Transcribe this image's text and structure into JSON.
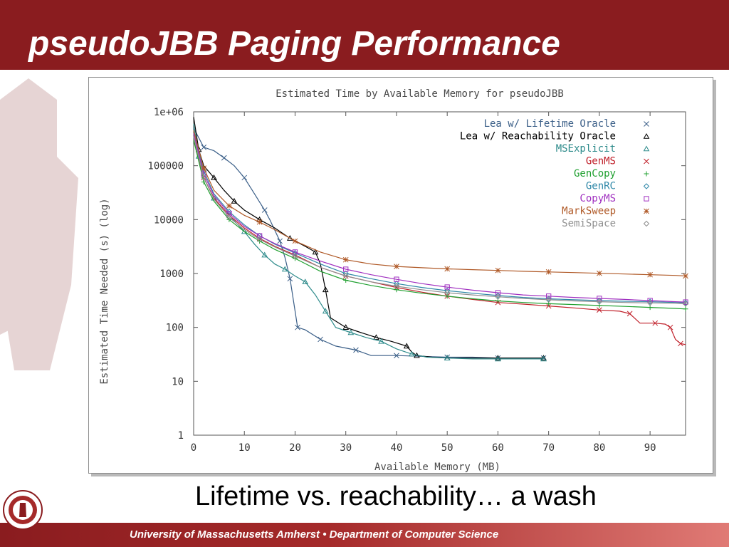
{
  "slide": {
    "title": "pseudoJBB Paging Performance",
    "subtitle": "Lifetime vs. reachability… a wash",
    "footer": "University of Massachusetts Amherst  •  Department of Computer Science",
    "colors": {
      "maroon": "#8a1c1f",
      "footer_end": "#e07a75"
    }
  },
  "chart_data": {
    "type": "line",
    "title": "Estimated Time by Available Memory for pseudoJBB",
    "xlabel": "Available Memory (MB)",
    "ylabel": "Estimated Time Needed (s) (log)",
    "xlim": [
      0,
      97
    ],
    "ylim": [
      1,
      1000000
    ],
    "yscale": "log",
    "xticks": [
      0,
      10,
      20,
      30,
      40,
      50,
      60,
      70,
      80,
      90
    ],
    "xtick_labels": [
      "0",
      "10",
      "20",
      "30",
      "40",
      "50",
      "60",
      "70",
      "80",
      "90"
    ],
    "yticks": [
      1,
      10,
      100,
      1000,
      10000,
      100000,
      1000000
    ],
    "ytick_labels": [
      "1",
      "10",
      "100",
      "1000",
      "10000",
      "100000",
      "1e+06"
    ],
    "grid": false,
    "legend_position": "top-right",
    "series": [
      {
        "name": "Lea w/ Lifetime Oracle",
        "color": "#3b5f88",
        "marker": "x",
        "points": [
          [
            0,
            500000
          ],
          [
            2,
            220000
          ],
          [
            4,
            190000
          ],
          [
            6,
            140000
          ],
          [
            8,
            100000
          ],
          [
            10,
            60000
          ],
          [
            12,
            30000
          ],
          [
            14,
            15000
          ],
          [
            15,
            10000
          ],
          [
            17,
            4000
          ],
          [
            18,
            2000
          ],
          [
            19,
            800
          ],
          [
            20,
            200
          ],
          [
            20.5,
            100
          ],
          [
            22,
            90
          ],
          [
            25,
            60
          ],
          [
            28,
            45
          ],
          [
            32,
            38
          ],
          [
            35,
            30
          ],
          [
            40,
            30
          ],
          [
            45,
            29
          ],
          [
            50,
            28
          ],
          [
            55,
            28
          ],
          [
            60,
            27
          ],
          [
            65,
            27
          ],
          [
            69,
            27
          ]
        ]
      },
      {
        "name": "Lea w/ Reachability Oracle",
        "color": "#000000",
        "marker": "triangle",
        "points": [
          [
            0,
            800000
          ],
          [
            1,
            200000
          ],
          [
            2,
            100000
          ],
          [
            4,
            60000
          ],
          [
            6,
            35000
          ],
          [
            8,
            22000
          ],
          [
            10,
            15000
          ],
          [
            13,
            10000
          ],
          [
            16,
            7000
          ],
          [
            19,
            4500
          ],
          [
            22,
            3200
          ],
          [
            24,
            2500
          ],
          [
            25,
            1500
          ],
          [
            26,
            500
          ],
          [
            27,
            150
          ],
          [
            30,
            100
          ],
          [
            33,
            80
          ],
          [
            36,
            65
          ],
          [
            39,
            55
          ],
          [
            42,
            45
          ],
          [
            43,
            35
          ],
          [
            44,
            30
          ],
          [
            47,
            28
          ],
          [
            50,
            27
          ],
          [
            55,
            27
          ],
          [
            60,
            27
          ],
          [
            65,
            27
          ],
          [
            69,
            27
          ]
        ]
      },
      {
        "name": "MSExplicit",
        "color": "#2e8b8b",
        "marker": "triangle",
        "points": [
          [
            0,
            600000
          ],
          [
            1,
            150000
          ],
          [
            2,
            60000
          ],
          [
            4,
            25000
          ],
          [
            7,
            12000
          ],
          [
            10,
            6000
          ],
          [
            12,
            3500
          ],
          [
            14,
            2200
          ],
          [
            16,
            1500
          ],
          [
            18,
            1200
          ],
          [
            20,
            900
          ],
          [
            22,
            700
          ],
          [
            24,
            400
          ],
          [
            26,
            200
          ],
          [
            28,
            100
          ],
          [
            31,
            80
          ],
          [
            34,
            65
          ],
          [
            37,
            55
          ],
          [
            40,
            40
          ],
          [
            43,
            32
          ],
          [
            46,
            28
          ],
          [
            50,
            27
          ],
          [
            55,
            26
          ],
          [
            60,
            26
          ],
          [
            65,
            26
          ],
          [
            69,
            26
          ]
        ]
      },
      {
        "name": "GenMS",
        "color": "#c0202a",
        "marker": "x",
        "points": [
          [
            0,
            300000
          ],
          [
            2,
            60000
          ],
          [
            4,
            25000
          ],
          [
            7,
            12000
          ],
          [
            10,
            7000
          ],
          [
            13,
            4500
          ],
          [
            16,
            3200
          ],
          [
            20,
            2200
          ],
          [
            25,
            1300
          ],
          [
            30,
            900
          ],
          [
            35,
            700
          ],
          [
            40,
            550
          ],
          [
            45,
            450
          ],
          [
            50,
            380
          ],
          [
            55,
            330
          ],
          [
            60,
            290
          ],
          [
            65,
            270
          ],
          [
            70,
            250
          ],
          [
            75,
            230
          ],
          [
            80,
            210
          ],
          [
            84,
            200
          ],
          [
            86,
            180
          ],
          [
            88,
            120
          ],
          [
            91,
            120
          ],
          [
            93,
            115
          ],
          [
            94,
            100
          ],
          [
            95,
            60
          ],
          [
            96,
            50
          ],
          [
            97,
            48
          ]
        ]
      },
      {
        "name": "GenCopy",
        "color": "#20a030",
        "marker": "plus",
        "points": [
          [
            0,
            300000
          ],
          [
            2,
            50000
          ],
          [
            4,
            22000
          ],
          [
            7,
            10000
          ],
          [
            10,
            6000
          ],
          [
            13,
            4000
          ],
          [
            16,
            2800
          ],
          [
            20,
            1900
          ],
          [
            25,
            1100
          ],
          [
            30,
            750
          ],
          [
            35,
            600
          ],
          [
            40,
            500
          ],
          [
            45,
            430
          ],
          [
            50,
            380
          ],
          [
            55,
            340
          ],
          [
            60,
            310
          ],
          [
            65,
            290
          ],
          [
            70,
            275
          ],
          [
            75,
            265
          ],
          [
            80,
            255
          ],
          [
            85,
            245
          ],
          [
            90,
            235
          ],
          [
            95,
            225
          ],
          [
            97,
            220
          ]
        ]
      },
      {
        "name": "GenRC",
        "color": "#3088a8",
        "marker": "diamond",
        "points": [
          [
            0,
            400000
          ],
          [
            2,
            80000
          ],
          [
            4,
            30000
          ],
          [
            7,
            14000
          ],
          [
            10,
            8000
          ],
          [
            13,
            5000
          ],
          [
            16,
            3500
          ],
          [
            20,
            2400
          ],
          [
            25,
            1500
          ],
          [
            30,
            1000
          ],
          [
            35,
            800
          ],
          [
            40,
            650
          ],
          [
            45,
            550
          ],
          [
            50,
            480
          ],
          [
            55,
            430
          ],
          [
            60,
            390
          ],
          [
            65,
            360
          ],
          [
            70,
            340
          ],
          [
            75,
            325
          ],
          [
            80,
            315
          ],
          [
            85,
            305
          ],
          [
            90,
            300
          ],
          [
            95,
            290
          ],
          [
            97,
            285
          ]
        ]
      },
      {
        "name": "CopyMS",
        "color": "#a030c0",
        "marker": "square",
        "points": [
          [
            0,
            400000
          ],
          [
            2,
            70000
          ],
          [
            4,
            28000
          ],
          [
            7,
            13000
          ],
          [
            10,
            7500
          ],
          [
            13,
            5000
          ],
          [
            16,
            3600
          ],
          [
            20,
            2500
          ],
          [
            25,
            1700
          ],
          [
            30,
            1200
          ],
          [
            35,
            950
          ],
          [
            40,
            780
          ],
          [
            45,
            650
          ],
          [
            50,
            560
          ],
          [
            55,
            490
          ],
          [
            60,
            440
          ],
          [
            65,
            400
          ],
          [
            70,
            380
          ],
          [
            75,
            360
          ],
          [
            80,
            345
          ],
          [
            85,
            330
          ],
          [
            90,
            315
          ],
          [
            95,
            300
          ],
          [
            97,
            295
          ]
        ]
      },
      {
        "name": "MarkSweep",
        "color": "#b05a28",
        "marker": "star",
        "points": [
          [
            0,
            450000
          ],
          [
            2,
            90000
          ],
          [
            4,
            35000
          ],
          [
            7,
            18000
          ],
          [
            10,
            12000
          ],
          [
            13,
            9000
          ],
          [
            16,
            6500
          ],
          [
            20,
            4000
          ],
          [
            25,
            2500
          ],
          [
            30,
            1800
          ],
          [
            35,
            1500
          ],
          [
            40,
            1350
          ],
          [
            45,
            1280
          ],
          [
            50,
            1220
          ],
          [
            55,
            1180
          ],
          [
            60,
            1140
          ],
          [
            65,
            1100
          ],
          [
            70,
            1070
          ],
          [
            75,
            1040
          ],
          [
            80,
            1010
          ],
          [
            85,
            980
          ],
          [
            90,
            950
          ],
          [
            95,
            920
          ],
          [
            97,
            900
          ]
        ]
      },
      {
        "name": "SemiSpace",
        "color": "#909090",
        "marker": "diamond",
        "points": [
          [
            0,
            350000
          ],
          [
            2,
            60000
          ],
          [
            4,
            24000
          ],
          [
            7,
            11000
          ],
          [
            10,
            6500
          ],
          [
            13,
            4300
          ],
          [
            16,
            3100
          ],
          [
            20,
            2100
          ],
          [
            25,
            1300
          ],
          [
            30,
            900
          ],
          [
            35,
            700
          ],
          [
            40,
            580
          ],
          [
            45,
            500
          ],
          [
            50,
            440
          ],
          [
            55,
            400
          ],
          [
            60,
            370
          ],
          [
            65,
            345
          ],
          [
            70,
            325
          ],
          [
            75,
            310
          ],
          [
            80,
            300
          ],
          [
            85,
            290
          ],
          [
            90,
            285
          ],
          [
            95,
            280
          ],
          [
            97,
            275
          ]
        ]
      }
    ]
  }
}
